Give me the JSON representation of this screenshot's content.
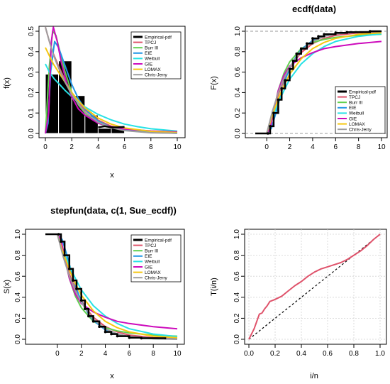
{
  "legend_entries": [
    {
      "name": "Empirical-pdf",
      "color": "#000000",
      "width": 3
    },
    {
      "name": "TPCJ",
      "color": "#df536b",
      "width": 2
    },
    {
      "name": "Burr III",
      "color": "#61d04f",
      "width": 2
    },
    {
      "name": "EIE",
      "color": "#2297e6",
      "width": 2
    },
    {
      "name": "Weibull",
      "color": "#28e2e5",
      "width": 2
    },
    {
      "name": "GIE",
      "color": "#cd0bbc",
      "width": 2
    },
    {
      "name": "LOMAX",
      "color": "#f5c710",
      "width": 2
    },
    {
      "name": "Chris-Jerry",
      "color": "#9e9e9e",
      "width": 2
    }
  ],
  "chart_data": [
    {
      "type": "line",
      "panel": "density",
      "title": "",
      "xlabel": "x",
      "ylabel": "f(x)",
      "xlim": [
        0,
        10
      ],
      "ylim": [
        0,
        0.5
      ],
      "xticks": [
        "0",
        "2",
        "4",
        "6",
        "8",
        "10"
      ],
      "yticks": [
        "0.0",
        "0.1",
        "0.2",
        "0.3",
        "0.4",
        "0.5"
      ],
      "legend_position": "top-right",
      "histogram": {
        "bins": [
          [
            0,
            1
          ],
          [
            1,
            2
          ],
          [
            2,
            3
          ],
          [
            3,
            4
          ],
          [
            4,
            5
          ],
          [
            5,
            6
          ]
        ],
        "density": [
          0.29,
          0.355,
          0.185,
          0.09,
          0.025,
          0.03
        ]
      },
      "empirical": {
        "x": [
          4.0,
          4.5,
          5.0,
          5.5,
          6.0
        ],
        "y": [
          0.03,
          0.035,
          0.03,
          0.03,
          0.032
        ]
      },
      "series": [
        {
          "name": "TPCJ",
          "x": [
            0,
            0.3,
            0.6,
            1.0,
            1.5,
            2,
            2.5,
            3,
            4,
            5,
            6,
            7,
            8,
            10
          ],
          "y": [
            0.52,
            0.45,
            0.39,
            0.33,
            0.26,
            0.2,
            0.155,
            0.115,
            0.065,
            0.035,
            0.02,
            0.011,
            0.006,
            0.002
          ]
        },
        {
          "name": "Burr III",
          "x": [
            0,
            0.3,
            0.55,
            0.8,
            1.1,
            1.5,
            2,
            2.5,
            3,
            4,
            5,
            6,
            8,
            10
          ],
          "y": [
            0,
            0.33,
            0.5,
            0.48,
            0.4,
            0.3,
            0.2,
            0.14,
            0.1,
            0.05,
            0.028,
            0.018,
            0.008,
            0.004
          ]
        },
        {
          "name": "EIE",
          "x": [
            0,
            0.2,
            0.4,
            0.7,
            1.0,
            1.5,
            2,
            2.5,
            3,
            4,
            5,
            6,
            8,
            10
          ],
          "y": [
            0,
            0.05,
            0.3,
            0.45,
            0.42,
            0.33,
            0.24,
            0.17,
            0.12,
            0.06,
            0.03,
            0.015,
            0.004,
            0.001
          ]
        },
        {
          "name": "Weibull",
          "x": [
            0,
            0.3,
            0.7,
            1.0,
            1.5,
            2,
            3,
            4,
            5,
            6,
            7,
            8,
            10
          ],
          "y": [
            0.34,
            0.3,
            0.265,
            0.245,
            0.21,
            0.18,
            0.13,
            0.093,
            0.066,
            0.046,
            0.033,
            0.023,
            0.011
          ]
        },
        {
          "name": "GIE",
          "x": [
            0,
            0.25,
            0.45,
            0.6,
            0.9,
            1.2,
            1.6,
            2,
            2.5,
            3,
            4,
            5,
            6,
            8,
            10
          ],
          "y": [
            0,
            0.1,
            0.45,
            0.52,
            0.45,
            0.35,
            0.25,
            0.18,
            0.12,
            0.09,
            0.05,
            0.032,
            0.022,
            0.012,
            0.008
          ]
        },
        {
          "name": "LOMAX",
          "x": [
            0,
            0.3,
            0.6,
            1,
            1.5,
            2,
            2.5,
            3,
            4,
            5,
            6,
            8,
            10
          ],
          "y": [
            0.42,
            0.38,
            0.34,
            0.3,
            0.25,
            0.2,
            0.16,
            0.125,
            0.075,
            0.045,
            0.027,
            0.01,
            0.004
          ]
        },
        {
          "name": "Chris-Jerry",
          "x": [
            0,
            0.3,
            0.6,
            1,
            1.5,
            2,
            2.5,
            3,
            4,
            5,
            6,
            8,
            10
          ],
          "y": [
            0.52,
            0.45,
            0.385,
            0.32,
            0.25,
            0.19,
            0.145,
            0.105,
            0.055,
            0.028,
            0.014,
            0.003,
            0.001
          ]
        }
      ]
    },
    {
      "type": "line",
      "panel": "cdf",
      "title": "ecdf(data)",
      "xlabel": "",
      "ylabel": "F(x)",
      "xlim": [
        -1,
        10
      ],
      "ylim": [
        0,
        1
      ],
      "xticks": [
        "0",
        "2",
        "4",
        "6",
        "8",
        "10"
      ],
      "yticks": [
        "0.0",
        "0.2",
        "0.4",
        "0.6",
        "0.8",
        "1.0"
      ],
      "legend_position": "bottom-right",
      "reference_lines": [
        0,
        1
      ],
      "empirical": {
        "x": [
          -1,
          0.1,
          0.3,
          0.6,
          1.0,
          1.3,
          1.6,
          2.0,
          2.3,
          2.6,
          3.0,
          3.5,
          4.0,
          4.5,
          5.0,
          6.0,
          7.0,
          9.0,
          10
        ],
        "y": [
          0,
          0,
          0.07,
          0.2,
          0.33,
          0.44,
          0.52,
          0.63,
          0.71,
          0.78,
          0.83,
          0.88,
          0.93,
          0.95,
          0.97,
          0.985,
          0.99,
          1.0,
          1.0
        ]
      },
      "series": [
        {
          "name": "TPCJ",
          "x": [
            0,
            0.5,
            1,
            1.5,
            2,
            2.5,
            3,
            4,
            5,
            6,
            8,
            10
          ],
          "y": [
            0,
            0.21,
            0.38,
            0.52,
            0.63,
            0.72,
            0.79,
            0.88,
            0.93,
            0.96,
            0.985,
            0.995
          ]
        },
        {
          "name": "Burr III",
          "x": [
            0,
            0.3,
            0.6,
            1,
            1.5,
            2,
            3,
            4,
            5,
            6,
            8,
            10
          ],
          "y": [
            0,
            0.08,
            0.22,
            0.42,
            0.59,
            0.7,
            0.83,
            0.89,
            0.92,
            0.94,
            0.96,
            0.97
          ]
        },
        {
          "name": "EIE",
          "x": [
            0,
            0.4,
            0.8,
            1.2,
            1.6,
            2,
            2.5,
            3,
            4,
            5,
            6,
            8,
            10
          ],
          "y": [
            0,
            0.05,
            0.2,
            0.37,
            0.52,
            0.64,
            0.74,
            0.82,
            0.91,
            0.95,
            0.975,
            0.993,
            0.998
          ]
        },
        {
          "name": "Weibull",
          "x": [
            0,
            0.5,
            1,
            1.5,
            2,
            3,
            4,
            5,
            6,
            8,
            10
          ],
          "y": [
            0,
            0.16,
            0.3,
            0.42,
            0.53,
            0.68,
            0.78,
            0.85,
            0.9,
            0.95,
            0.975
          ]
        },
        {
          "name": "GIE",
          "x": [
            0,
            0.3,
            0.6,
            1,
            1.5,
            2,
            3,
            4,
            5,
            6,
            8,
            10
          ],
          "y": [
            0,
            0.05,
            0.22,
            0.42,
            0.57,
            0.66,
            0.74,
            0.79,
            0.83,
            0.85,
            0.88,
            0.9
          ]
        },
        {
          "name": "LOMAX",
          "x": [
            0,
            0.5,
            1,
            1.5,
            2,
            3,
            4,
            5,
            6,
            8,
            10
          ],
          "y": [
            0,
            0.18,
            0.34,
            0.47,
            0.58,
            0.73,
            0.83,
            0.89,
            0.93,
            0.97,
            0.985
          ]
        },
        {
          "name": "Chris-Jerry",
          "x": [
            0,
            0.5,
            1,
            1.5,
            2,
            3,
            4,
            5,
            6,
            8,
            10
          ],
          "y": [
            0,
            0.22,
            0.4,
            0.54,
            0.65,
            0.81,
            0.9,
            0.95,
            0.975,
            0.995,
            1.0
          ]
        }
      ]
    },
    {
      "type": "line",
      "panel": "survival",
      "title": "stepfun(data, c(1, Sue_ecdf))",
      "xlabel": "x",
      "ylabel": "S(x)",
      "xlim": [
        -1,
        10
      ],
      "ylim": [
        0,
        1
      ],
      "xticks": [
        "0",
        "2",
        "4",
        "6",
        "8",
        "10"
      ],
      "yticks": [
        "0.0",
        "0.2",
        "0.4",
        "0.6",
        "0.8",
        "1.0"
      ],
      "legend_position": "top-right",
      "empirical": {
        "x": [
          -1,
          0.1,
          0.3,
          0.6,
          1.0,
          1.3,
          1.6,
          2.0,
          2.3,
          2.6,
          3.0,
          3.5,
          4.0,
          4.5,
          5.0,
          6.0,
          7.0,
          9.0
        ],
        "y": [
          1,
          1,
          0.93,
          0.8,
          0.67,
          0.56,
          0.48,
          0.37,
          0.29,
          0.22,
          0.17,
          0.12,
          0.07,
          0.05,
          0.03,
          0.015,
          0.01,
          0.0
        ]
      },
      "series": [
        {
          "name": "TPCJ",
          "x": [
            0,
            0.5,
            1,
            1.5,
            2,
            2.5,
            3,
            4,
            5,
            6,
            8,
            10
          ],
          "y": [
            1,
            0.79,
            0.62,
            0.48,
            0.37,
            0.28,
            0.21,
            0.12,
            0.07,
            0.04,
            0.015,
            0.005
          ]
        },
        {
          "name": "Burr III",
          "x": [
            0,
            0.3,
            0.6,
            1,
            1.5,
            2,
            3,
            4,
            5,
            6,
            8,
            10
          ],
          "y": [
            1,
            0.92,
            0.78,
            0.58,
            0.41,
            0.3,
            0.17,
            0.11,
            0.08,
            0.06,
            0.04,
            0.03
          ]
        },
        {
          "name": "EIE",
          "x": [
            0,
            0.4,
            0.8,
            1.2,
            1.6,
            2,
            2.5,
            3,
            4,
            5,
            6,
            8,
            10
          ],
          "y": [
            1,
            0.95,
            0.8,
            0.63,
            0.48,
            0.36,
            0.26,
            0.18,
            0.09,
            0.05,
            0.025,
            0.007,
            0.002
          ]
        },
        {
          "name": "Weibull",
          "x": [
            0,
            0.5,
            1,
            1.5,
            2,
            3,
            4,
            5,
            6,
            8,
            10
          ],
          "y": [
            1,
            0.84,
            0.7,
            0.58,
            0.47,
            0.32,
            0.22,
            0.15,
            0.1,
            0.05,
            0.025
          ]
        },
        {
          "name": "GIE",
          "x": [
            0,
            0.3,
            0.6,
            1,
            1.5,
            2,
            3,
            4,
            5,
            6,
            8,
            10
          ],
          "y": [
            1,
            0.95,
            0.78,
            0.58,
            0.43,
            0.34,
            0.26,
            0.21,
            0.17,
            0.15,
            0.12,
            0.1
          ]
        },
        {
          "name": "LOMAX",
          "x": [
            0,
            0.5,
            1,
            1.5,
            2,
            3,
            4,
            5,
            6,
            8,
            10
          ],
          "y": [
            1,
            0.82,
            0.66,
            0.53,
            0.42,
            0.27,
            0.17,
            0.11,
            0.07,
            0.03,
            0.015
          ]
        },
        {
          "name": "Chris-Jerry",
          "x": [
            0,
            0.5,
            1,
            1.5,
            2,
            3,
            4,
            5,
            6,
            8,
            10
          ],
          "y": [
            1,
            0.78,
            0.6,
            0.46,
            0.35,
            0.19,
            0.1,
            0.05,
            0.025,
            0.005,
            0.0
          ]
        }
      ]
    },
    {
      "type": "line",
      "panel": "ttt",
      "title": "",
      "xlabel": "i/n",
      "ylabel": "T(i/n)",
      "xlim": [
        0,
        1
      ],
      "ylim": [
        0,
        1
      ],
      "xticks": [
        "0.0",
        "0.2",
        "0.4",
        "0.6",
        "0.8",
        "1.0"
      ],
      "yticks": [
        "0.0",
        "0.2",
        "0.4",
        "0.6",
        "0.8",
        "1.0"
      ],
      "grid": true,
      "diagonal": true,
      "series": [
        {
          "name": "",
          "color": "#df536b",
          "x": [
            0,
            0.02,
            0.04,
            0.06,
            0.08,
            0.1,
            0.12,
            0.14,
            0.16,
            0.2,
            0.25,
            0.3,
            0.35,
            0.4,
            0.45,
            0.5,
            0.55,
            0.6,
            0.65,
            0.7,
            0.75,
            0.8,
            0.85,
            0.9,
            0.95,
            1.0
          ],
          "y": [
            0,
            0.05,
            0.1,
            0.17,
            0.24,
            0.25,
            0.29,
            0.32,
            0.36,
            0.38,
            0.41,
            0.46,
            0.51,
            0.55,
            0.6,
            0.64,
            0.67,
            0.69,
            0.71,
            0.73,
            0.76,
            0.8,
            0.84,
            0.89,
            0.95,
            1.0
          ]
        }
      ]
    }
  ]
}
